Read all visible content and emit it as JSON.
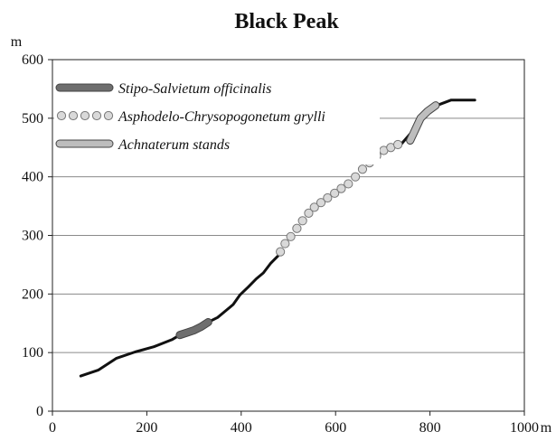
{
  "chart_data": {
    "type": "line",
    "title": "Black Peak",
    "ylabel": "m",
    "xlabel": "m",
    "xlim": [
      0,
      1000
    ],
    "ylim": [
      0,
      600
    ],
    "x_ticks": [
      0,
      200,
      400,
      600,
      800,
      1000
    ],
    "x_tick_labels": [
      "0",
      "200",
      "400",
      "600",
      "800",
      "1000"
    ],
    "y_ticks": [
      0,
      100,
      200,
      300,
      400,
      500,
      600
    ],
    "y_tick_labels": [
      "0",
      "100",
      "200",
      "300",
      "400",
      "500",
      "600"
    ],
    "grid": "horizontal",
    "legend_position": "top-left",
    "profile": [
      {
        "x": 60,
        "y": 60
      },
      {
        "x": 97,
        "y": 70
      },
      {
        "x": 135,
        "y": 90
      },
      {
        "x": 175,
        "y": 101
      },
      {
        "x": 215,
        "y": 110
      },
      {
        "x": 253,
        "y": 122
      },
      {
        "x": 270,
        "y": 130
      },
      {
        "x": 300,
        "y": 138
      },
      {
        "x": 330,
        "y": 152
      },
      {
        "x": 350,
        "y": 160
      },
      {
        "x": 368,
        "y": 172
      },
      {
        "x": 383,
        "y": 182
      },
      {
        "x": 397,
        "y": 198
      },
      {
        "x": 415,
        "y": 212
      },
      {
        "x": 432,
        "y": 226
      },
      {
        "x": 447,
        "y": 236
      },
      {
        "x": 462,
        "y": 252
      },
      {
        "x": 478,
        "y": 265
      },
      {
        "x": 737,
        "y": 454
      },
      {
        "x": 760,
        "y": 475
      },
      {
        "x": 790,
        "y": 508
      },
      {
        "x": 812,
        "y": 521
      },
      {
        "x": 845,
        "y": 531
      },
      {
        "x": 895,
        "y": 531
      }
    ],
    "series": [
      {
        "name": "Stipo-Salvietum officinalis",
        "style": "dark-band",
        "color": "#6e6e6e",
        "x": [
          270,
          285,
          300,
          315,
          330
        ],
        "y": [
          130,
          134,
          138,
          144,
          152
        ]
      },
      {
        "name": "Asphodelo-Chrysopogonetum grylli",
        "style": "circles",
        "color": "#d9d9d9",
        "x": [
          483,
          493,
          505,
          518,
          530,
          543,
          555,
          569,
          583,
          598,
          612,
          627,
          642,
          657,
          672,
          687,
          702,
          717,
          732
        ],
        "y": [
          272,
          286,
          298,
          312,
          325,
          338,
          348,
          356,
          364,
          372,
          380,
          388,
          400,
          413,
          424,
          436,
          445,
          450,
          455
        ]
      },
      {
        "name": "Achnaterum stands",
        "style": "light-band",
        "color": "#bdbdbd",
        "x": [
          758,
          780,
          795,
          812
        ],
        "y": [
          462,
          500,
          512,
          522
        ]
      }
    ]
  }
}
